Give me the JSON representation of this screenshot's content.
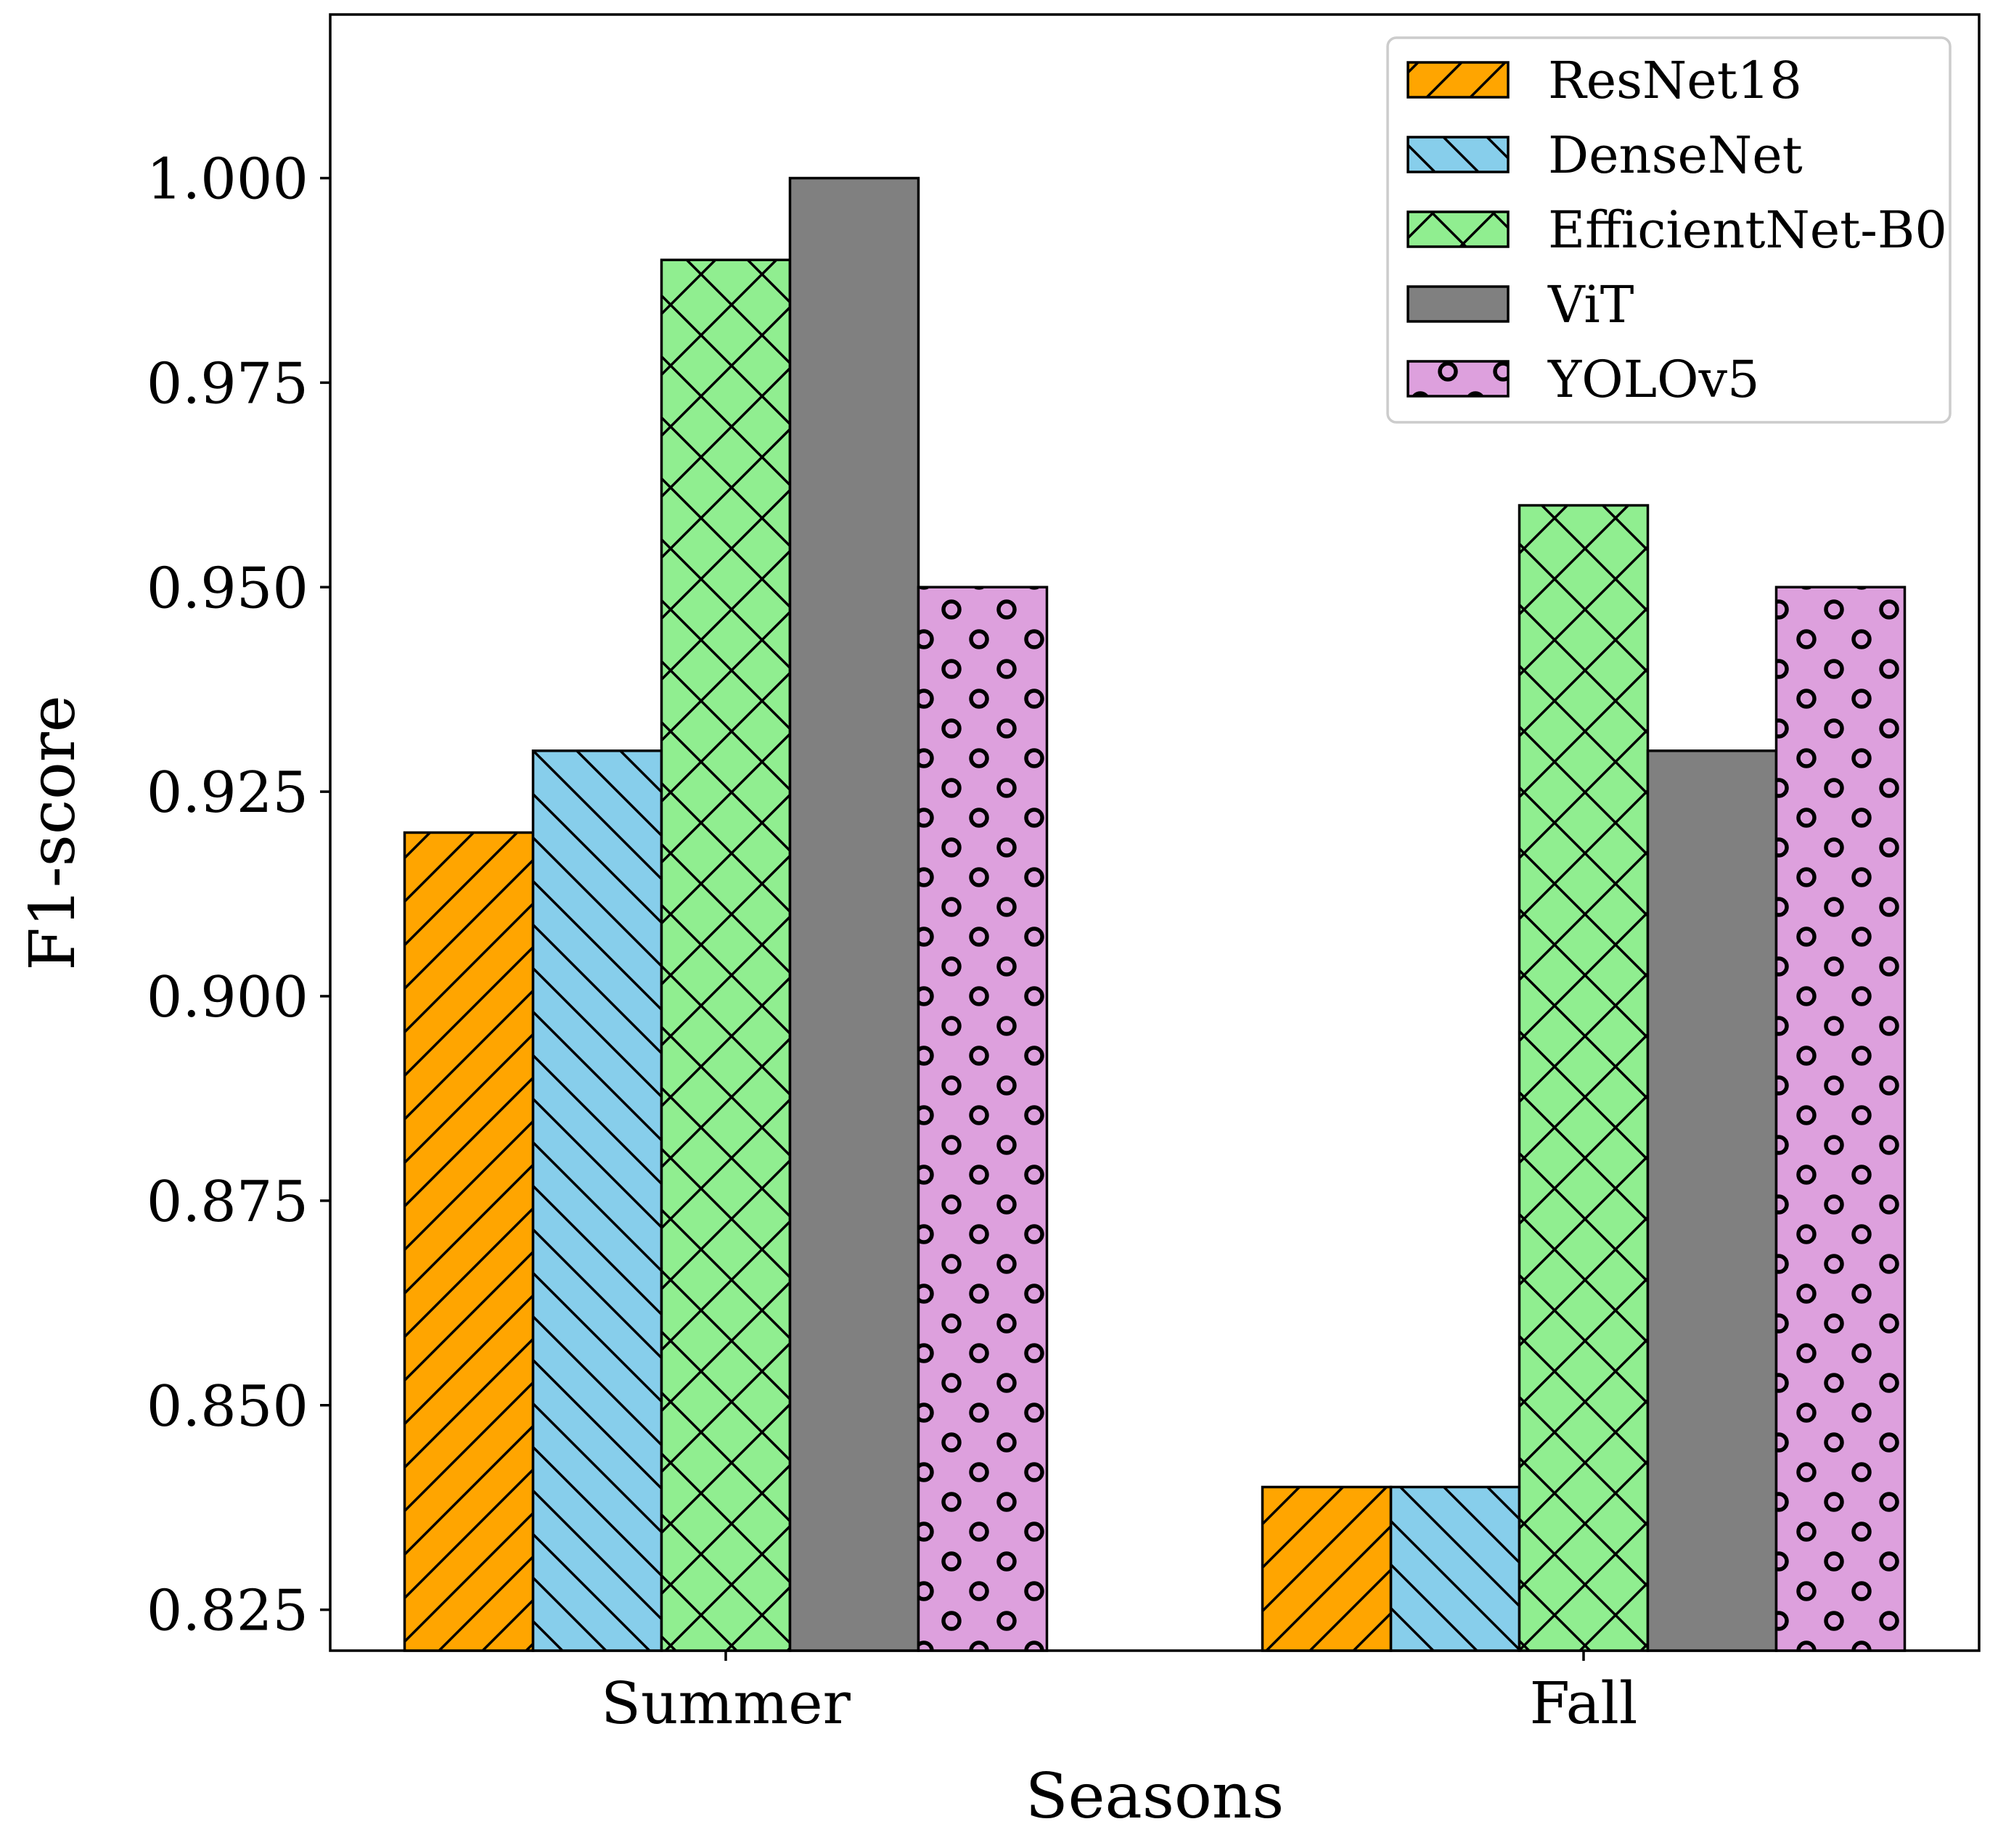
{
  "chart_data": {
    "type": "bar",
    "xlabel": "Seasons",
    "ylabel": "F1-score",
    "categories": [
      "Summer",
      "Fall"
    ],
    "ylim": [
      0.82,
      1.02
    ],
    "yticks": [
      0.825,
      0.85,
      0.875,
      0.9,
      0.925,
      0.95,
      0.975,
      1.0
    ],
    "ytick_labels": [
      "0.825",
      "0.850",
      "0.875",
      "0.900",
      "0.925",
      "0.950",
      "0.975",
      "1.000"
    ],
    "legend_position": "top-right",
    "grid": false,
    "series": [
      {
        "name": "ResNet18",
        "values": [
          0.92,
          0.84
        ],
        "color": "#FFA500",
        "hatch": "slash"
      },
      {
        "name": "DenseNet",
        "values": [
          0.93,
          0.84
        ],
        "color": "#87CEEB",
        "hatch": "backslash"
      },
      {
        "name": "EfficientNet-B0",
        "values": [
          0.99,
          0.96
        ],
        "color": "#90EE90",
        "hatch": "cross"
      },
      {
        "name": "ViT",
        "values": [
          1.0,
          0.93
        ],
        "color": "#808080",
        "hatch": "none"
      },
      {
        "name": "YOLOv5",
        "values": [
          0.95,
          0.95
        ],
        "color": "#DDA0DD",
        "hatch": "circles"
      }
    ]
  }
}
